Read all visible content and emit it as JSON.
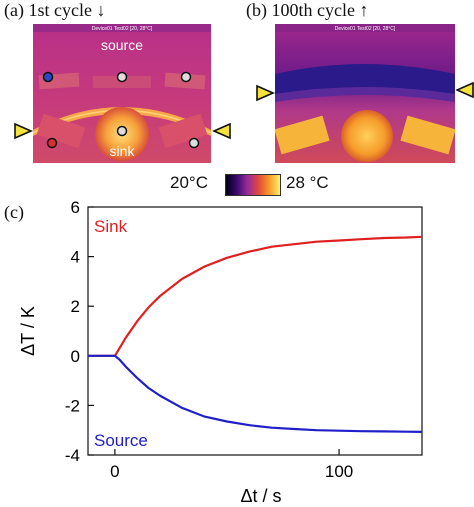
{
  "panels": {
    "a": {
      "label": "(a) 1st cycle ↓",
      "source_label": "source",
      "sink_label": "sink",
      "hud": "Device01 Test02 [20, 28°C]"
    },
    "b": {
      "label": "(b) 100th cycle ↑",
      "hud": "Device01 Test02 [20, 28°C]"
    },
    "c": {
      "label": "(c)"
    }
  },
  "color_scale": {
    "min_label": "20°C",
    "max_label": "28 °C"
  },
  "chart_data": {
    "type": "line",
    "xlabel": "Δt / s",
    "ylabel": "ΔT / K",
    "xlim": [
      -12,
      137
    ],
    "ylim": [
      -4,
      6
    ],
    "xticks": [
      0,
      100
    ],
    "yticks": [
      -4,
      -2,
      0,
      2,
      4,
      6
    ],
    "series": [
      {
        "name": "Sink",
        "color": "#e02020",
        "x": [
          -12,
          0,
          2,
          5,
          10,
          15,
          20,
          30,
          40,
          50,
          60,
          70,
          80,
          90,
          100,
          110,
          120,
          130,
          137
        ],
        "y": [
          0,
          0,
          0.3,
          0.75,
          1.4,
          1.95,
          2.4,
          3.1,
          3.6,
          3.95,
          4.2,
          4.4,
          4.5,
          4.6,
          4.65,
          4.7,
          4.75,
          4.77,
          4.8
        ]
      },
      {
        "name": "Source",
        "color": "#2020c8",
        "x": [
          -12,
          0,
          2,
          5,
          10,
          15,
          20,
          30,
          40,
          50,
          60,
          70,
          80,
          90,
          100,
          110,
          120,
          130,
          137
        ],
        "y": [
          0,
          0,
          -0.15,
          -0.45,
          -0.9,
          -1.3,
          -1.6,
          -2.1,
          -2.45,
          -2.65,
          -2.8,
          -2.9,
          -2.95,
          -3.0,
          -3.02,
          -3.04,
          -3.05,
          -3.06,
          -3.07
        ]
      }
    ]
  }
}
